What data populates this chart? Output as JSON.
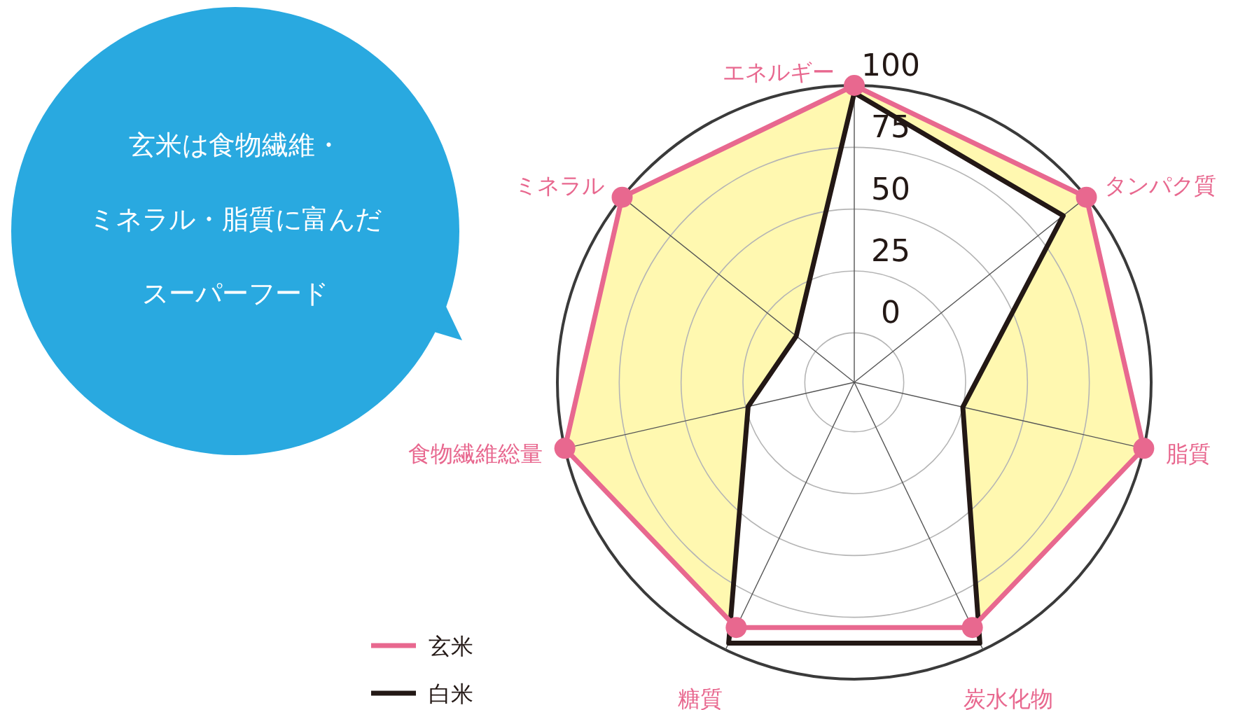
{
  "chart_data": {
    "type": "radar",
    "categories": [
      "エネルギー",
      "タンパク質",
      "脂質",
      "炭水化物",
      "糖質",
      "食物繊維総量",
      "ミネラル"
    ],
    "series": [
      {
        "name": "玄米",
        "color": "#e8688f",
        "values": [
          100,
          100,
          100,
          90,
          90,
          100,
          100
        ]
      },
      {
        "name": "白米",
        "color": "#231815",
        "values": [
          97,
          88,
          25,
          97,
          97,
          24,
          10
        ]
      }
    ],
    "ylim": [
      -20,
      100
    ],
    "yticks": [
      0,
      25,
      50,
      75,
      100
    ],
    "legend": "bottom left",
    "marker": "circle",
    "annotations": [
      "玄米は食物繊維・",
      "ミネラル・脂質に富んだ",
      "スーパーフード"
    ]
  }
}
